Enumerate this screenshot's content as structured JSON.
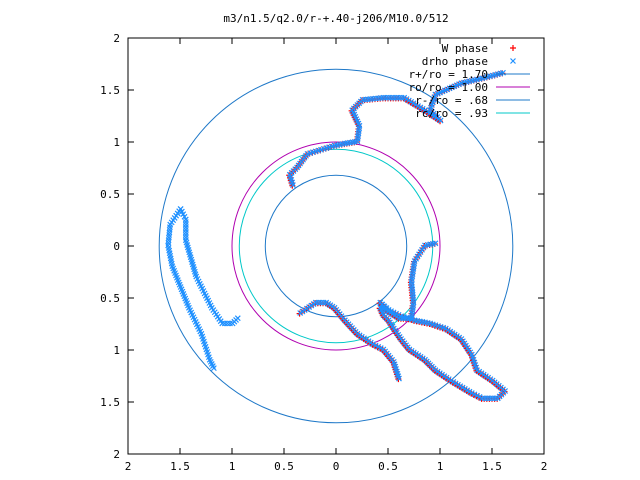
{
  "chart_data": {
    "type": "scatter",
    "title": "m3/n1.5/q2.0/r-+.40-j206/M10.0/512",
    "xlabel": "",
    "ylabel": "",
    "xlim": [
      2,
      -2
    ],
    "ylim": [
      -2,
      2
    ],
    "x_tick_labels": [
      "2",
      "1.5",
      "1",
      "0.5",
      "0",
      "0.5",
      "1",
      "1.5",
      "2"
    ],
    "y_tick_labels": [
      "2",
      "1.5",
      "1",
      "0.5",
      "0",
      "0.5",
      "1",
      "1.5",
      "2"
    ],
    "grid": false,
    "legend_position": "top-right",
    "series": [
      {
        "name": "W phase",
        "marker": "plus",
        "color": "#ff0000",
        "arms": [
          [
            [
              1.6,
              1.66
            ],
            [
              1.45,
              1.62
            ],
            [
              1.2,
              1.56
            ],
            [
              0.95,
              1.45
            ],
            [
              0.9,
              1.3
            ],
            [
              1.0,
              1.2
            ],
            [
              0.85,
              1.3
            ],
            [
              0.65,
              1.42
            ],
            [
              0.45,
              1.42
            ],
            [
              0.25,
              1.4
            ],
            [
              0.15,
              1.3
            ],
            [
              0.22,
              1.15
            ],
            [
              0.2,
              1.0
            ],
            [
              0.08,
              0.98
            ],
            [
              -0.02,
              0.96
            ],
            [
              -0.15,
              0.92
            ],
            [
              -0.28,
              0.88
            ],
            [
              -0.38,
              0.75
            ],
            [
              -0.45,
              0.68
            ],
            [
              -0.42,
              0.58
            ]
          ],
          [
            [
              0.95,
              0.02
            ],
            [
              0.85,
              0.0
            ],
            [
              0.75,
              -0.15
            ],
            [
              0.72,
              -0.35
            ],
            [
              0.74,
              -0.55
            ],
            [
              0.72,
              -0.7
            ],
            [
              0.6,
              -0.7
            ],
            [
              0.48,
              -0.62
            ],
            [
              0.42,
              -0.55
            ],
            [
              0.5,
              -0.62
            ],
            [
              0.62,
              -0.68
            ],
            [
              0.75,
              -0.72
            ],
            [
              0.9,
              -0.75
            ],
            [
              1.05,
              -0.8
            ],
            [
              1.2,
              -0.9
            ],
            [
              1.3,
              -1.05
            ],
            [
              1.35,
              -1.2
            ],
            [
              1.5,
              -1.3
            ],
            [
              1.62,
              -1.4
            ],
            [
              1.55,
              -1.47
            ],
            [
              1.4,
              -1.47
            ],
            [
              1.3,
              -1.42
            ],
            [
              1.1,
              -1.3
            ],
            [
              0.95,
              -1.2
            ],
            [
              0.85,
              -1.1
            ],
            [
              0.7,
              -1.0
            ],
            [
              0.62,
              -0.9
            ],
            [
              0.55,
              -0.8
            ],
            [
              0.5,
              -0.72
            ],
            [
              0.45,
              -0.67
            ],
            [
              0.42,
              -0.6
            ]
          ],
          [
            [
              -0.35,
              -0.65
            ],
            [
              -0.2,
              -0.55
            ],
            [
              -0.1,
              -0.55
            ],
            [
              -0.02,
              -0.6
            ],
            [
              0.08,
              -0.72
            ],
            [
              0.2,
              -0.85
            ],
            [
              0.35,
              -0.95
            ],
            [
              0.45,
              -1.0
            ],
            [
              0.55,
              -1.12
            ],
            [
              0.6,
              -1.28
            ]
          ]
        ]
      },
      {
        "name": "drho phase",
        "marker": "cross",
        "color": "#1e90ff",
        "arms": [
          [
            [
              1.6,
              1.66
            ],
            [
              1.45,
              1.62
            ],
            [
              1.2,
              1.56
            ],
            [
              0.95,
              1.45
            ],
            [
              0.9,
              1.3
            ],
            [
              1.0,
              1.2
            ],
            [
              0.85,
              1.3
            ],
            [
              0.65,
              1.42
            ],
            [
              0.45,
              1.42
            ],
            [
              0.25,
              1.4
            ],
            [
              0.15,
              1.3
            ],
            [
              0.22,
              1.15
            ],
            [
              0.2,
              1.0
            ],
            [
              0.08,
              0.98
            ],
            [
              -0.02,
              0.96
            ],
            [
              -0.15,
              0.92
            ],
            [
              -0.28,
              0.88
            ],
            [
              -0.38,
              0.75
            ],
            [
              -0.45,
              0.68
            ],
            [
              -0.42,
              0.58
            ]
          ],
          [
            [
              0.95,
              0.02
            ],
            [
              0.85,
              0.0
            ],
            [
              0.75,
              -0.15
            ],
            [
              0.72,
              -0.35
            ],
            [
              0.74,
              -0.55
            ],
            [
              0.72,
              -0.7
            ],
            [
              0.6,
              -0.7
            ],
            [
              0.48,
              -0.62
            ],
            [
              0.42,
              -0.55
            ],
            [
              0.5,
              -0.62
            ],
            [
              0.62,
              -0.68
            ],
            [
              0.75,
              -0.72
            ],
            [
              0.9,
              -0.75
            ],
            [
              1.05,
              -0.8
            ],
            [
              1.2,
              -0.9
            ],
            [
              1.3,
              -1.05
            ],
            [
              1.35,
              -1.2
            ],
            [
              1.5,
              -1.3
            ],
            [
              1.62,
              -1.4
            ],
            [
              1.55,
              -1.47
            ],
            [
              1.4,
              -1.47
            ],
            [
              1.3,
              -1.42
            ],
            [
              1.1,
              -1.3
            ],
            [
              0.95,
              -1.2
            ],
            [
              0.85,
              -1.1
            ],
            [
              0.7,
              -1.0
            ],
            [
              0.62,
              -0.9
            ],
            [
              0.55,
              -0.8
            ],
            [
              0.5,
              -0.72
            ],
            [
              0.45,
              -0.67
            ],
            [
              0.42,
              -0.6
            ]
          ],
          [
            [
              -0.35,
              -0.65
            ],
            [
              -0.2,
              -0.55
            ],
            [
              -0.1,
              -0.55
            ],
            [
              -0.02,
              -0.6
            ],
            [
              0.08,
              -0.72
            ],
            [
              0.2,
              -0.85
            ],
            [
              0.35,
              -0.95
            ],
            [
              0.45,
              -1.0
            ],
            [
              0.55,
              -1.12
            ],
            [
              0.6,
              -1.28
            ]
          ],
          [
            [
              -1.5,
              0.35
            ],
            [
              -1.6,
              0.2
            ],
            [
              -1.62,
              0.0
            ],
            [
              -1.58,
              -0.2
            ],
            [
              -1.5,
              -0.4
            ],
            [
              -1.42,
              -0.6
            ],
            [
              -1.3,
              -0.85
            ],
            [
              -1.22,
              -1.1
            ],
            [
              -1.18,
              -1.18
            ]
          ],
          [
            [
              -1.5,
              0.35
            ],
            [
              -1.45,
              0.25
            ],
            [
              -1.45,
              0.05
            ],
            [
              -1.35,
              -0.3
            ],
            [
              -1.2,
              -0.6
            ],
            [
              -1.1,
              -0.75
            ],
            [
              -1.0,
              -0.75
            ],
            [
              -0.95,
              -0.7
            ]
          ]
        ]
      },
      {
        "name": "r+/ro = 1.70",
        "type": "circle",
        "radius": 1.7,
        "color": "#1e78c8"
      },
      {
        "name": "ro/ro = 1.00",
        "type": "circle",
        "radius": 1.0,
        "color": "#b000b0"
      },
      {
        "name": "r-/ro = .68",
        "type": "circle",
        "radius": 0.68,
        "color": "#1e78c8"
      },
      {
        "name": "rc/ro = .93",
        "type": "circle",
        "radius": 0.93,
        "color": "#00c8c8"
      }
    ]
  }
}
